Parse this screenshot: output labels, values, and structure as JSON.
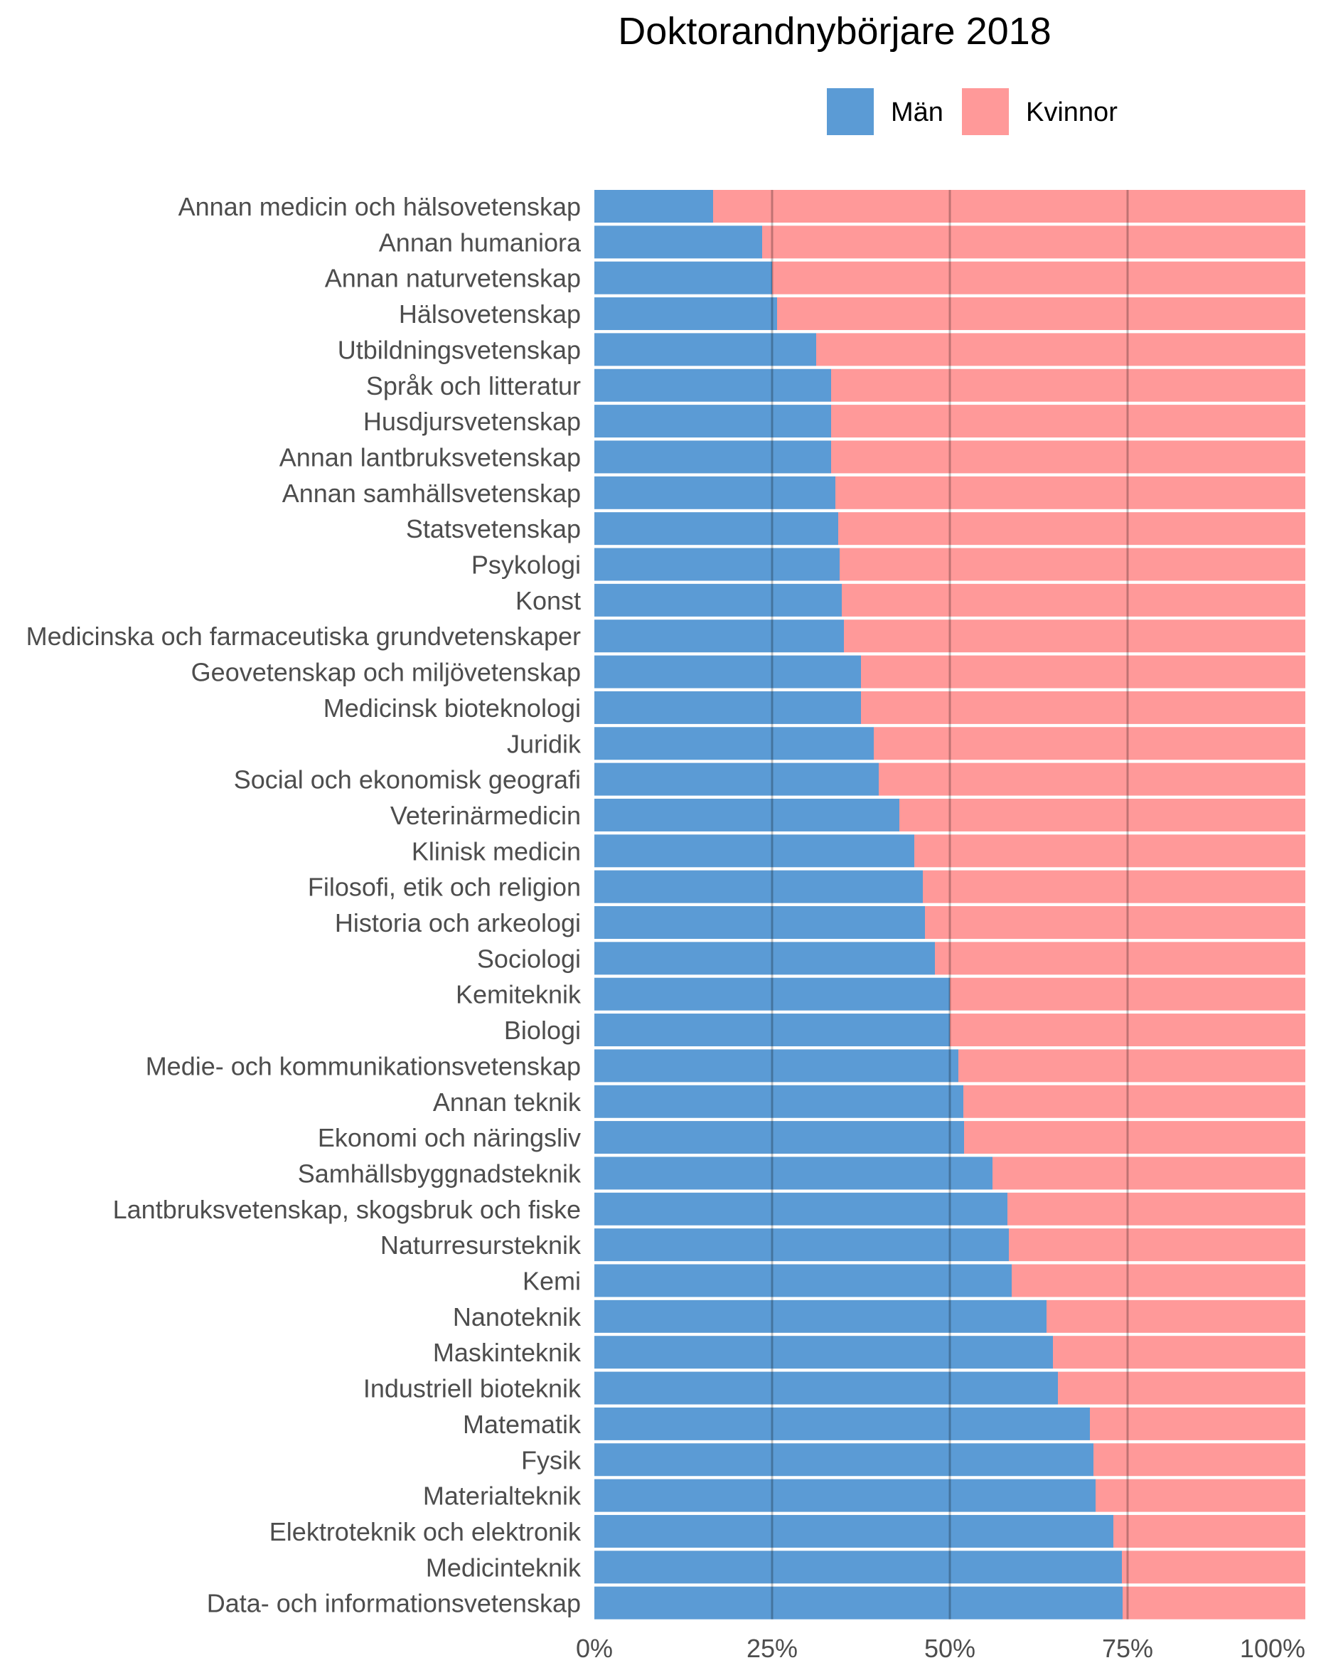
{
  "chart_data": {
    "type": "bar",
    "orientation": "horizontal",
    "stacked": "percent",
    "title": "Doktorandnybörjare 2018",
    "xlabel": "",
    "ylabel": "",
    "xlim": [
      0,
      100
    ],
    "x_ticks": [
      "0%",
      "25%",
      "50%",
      "75%",
      "100%"
    ],
    "x_tick_values": [
      0,
      25,
      50,
      75,
      100
    ],
    "grid": true,
    "legend_position": "top",
    "series": [
      {
        "name": "Män",
        "color": "#5b9bd5"
      },
      {
        "name": "Kvinnor",
        "color": "#ff9999"
      }
    ],
    "categories": [
      "Annan medicin och hälsovetenskap",
      "Annan humaniora",
      "Annan naturvetenskap",
      "Hälsovetenskap",
      "Utbildningsvetenskap",
      "Språk och litteratur",
      "Husdjursvetenskap",
      "Annan lantbruksvetenskap",
      "Annan samhällsvetenskap",
      "Statsvetenskap",
      "Psykologi",
      "Konst",
      "Medicinska och farmaceutiska grundvetenskaper",
      "Geovetenskap och miljövetenskap",
      "Medicinsk bioteknologi",
      "Juridik",
      "Social och ekonomisk geografi",
      "Veterinärmedicin",
      "Klinisk medicin",
      "Filosofi, etik och religion",
      "Historia och arkeologi",
      "Sociologi",
      "Kemiteknik",
      "Biologi",
      "Medie- och kommunikationsvetenskap",
      "Annan teknik",
      "Ekonomi och näringsliv",
      "Samhällsbyggnadsteknik",
      "Lantbruksvetenskap, skogsbruk och fiske",
      "Naturresursteknik",
      "Kemi",
      "Nanoteknik",
      "Maskinteknik",
      "Industriell bioteknik",
      "Matematik",
      "Fysik",
      "Materialteknik",
      "Elektroteknik och elektronik",
      "Medicinteknik",
      "Data- och informationsvetenskap"
    ],
    "men_percent": [
      16.7,
      23.6,
      25.0,
      25.7,
      31.2,
      33.3,
      33.3,
      33.3,
      33.9,
      34.3,
      34.5,
      34.8,
      35.1,
      37.5,
      37.5,
      39.3,
      40.0,
      42.9,
      45.0,
      46.2,
      46.5,
      47.9,
      50.0,
      50.0,
      51.2,
      51.9,
      52.0,
      56.0,
      58.1,
      58.3,
      58.7,
      63.6,
      64.5,
      65.2,
      69.7,
      70.2,
      70.5,
      73.0,
      74.2,
      74.3
    ],
    "women_percent": [
      83.3,
      76.4,
      75.0,
      74.3,
      68.8,
      66.7,
      66.7,
      66.7,
      66.1,
      65.7,
      65.5,
      65.2,
      64.9,
      62.5,
      62.5,
      60.7,
      60.0,
      57.1,
      55.0,
      53.8,
      53.5,
      52.1,
      50.0,
      50.0,
      48.8,
      48.1,
      48.0,
      44.0,
      41.9,
      41.7,
      41.3,
      36.4,
      35.5,
      34.8,
      30.3,
      29.8,
      29.5,
      27.0,
      25.8,
      25.7
    ]
  }
}
